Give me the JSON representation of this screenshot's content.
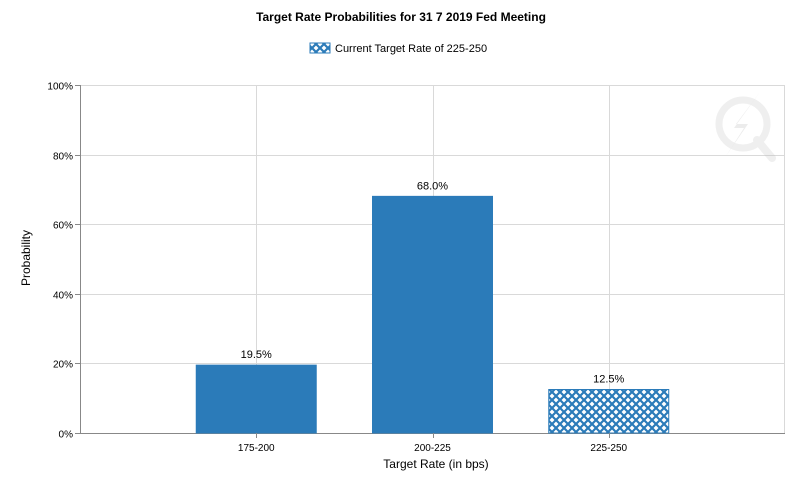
{
  "chart_data": {
    "type": "bar",
    "title": "Target Rate Probabilities for 31 7 2019 Fed Meeting",
    "xlabel": "Target Rate (in bps)",
    "ylabel": "Probability",
    "categories": [
      "175-200",
      "200-225",
      "225-250"
    ],
    "values": [
      19.5,
      68.0,
      12.5
    ],
    "data_labels": [
      "19.5%",
      "68.0%",
      "12.5%"
    ],
    "ylim": [
      0,
      100
    ],
    "y_ticks": [
      0,
      20,
      40,
      60,
      80,
      100
    ],
    "y_tick_labels": [
      "0%",
      "20%",
      "40%",
      "60%",
      "80%",
      "100%"
    ],
    "legend": {
      "label": "Current Target Rate of 225-250",
      "placement": "top-center"
    },
    "highlighted_category": "225-250",
    "grid": true,
    "colors": {
      "bar": "#2b7bb9",
      "grid": "#d9d9d9",
      "axis": "#888888"
    }
  }
}
